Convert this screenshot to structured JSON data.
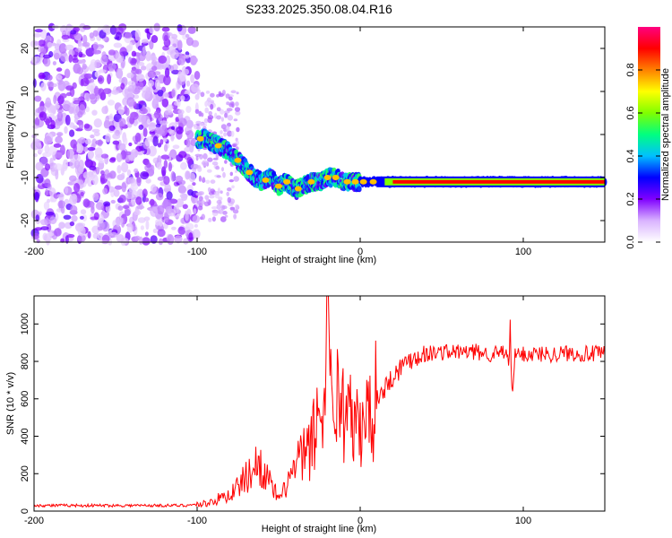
{
  "figure": {
    "title": "S233.2025.350.08.04.R16"
  },
  "chart_data": [
    {
      "type": "heatmap",
      "xlabel": "Height of straight line (km)",
      "ylabel": "Frequency (Hz)",
      "xlim": [
        -200,
        150
      ],
      "ylim": [
        -25,
        25
      ],
      "x_ticks": [
        -200,
        -100,
        0,
        100
      ],
      "y_ticks": [
        -20,
        -10,
        0,
        10,
        20
      ],
      "colorbar": {
        "label": "Normalized spectral amplitude",
        "range": [
          0,
          1
        ],
        "ticks": [
          "0.0",
          "0.2",
          "0.4",
          "0.6",
          "0.8"
        ],
        "colors": [
          "#ffffff",
          "#d9b3ff",
          "#8000ff",
          "#0000ff",
          "#00c0ff",
          "#00ff80",
          "#80ff00",
          "#ffff00",
          "#ff8000",
          "#ff0000",
          "#ff0080"
        ]
      },
      "noise_region": {
        "x": [
          -200,
          -100
        ],
        "y": [
          -25,
          25
        ],
        "level": "low (0.0-0.3)"
      },
      "signal_track": {
        "x": [
          -100,
          -95,
          -90,
          -85,
          -80,
          -75,
          -70,
          -65,
          -60,
          -55,
          -50,
          -45,
          -40,
          -35,
          -30,
          -25,
          -20,
          -15,
          -10,
          -5,
          0,
          5,
          10,
          20,
          40,
          60,
          90,
          120,
          150
        ],
        "y": [
          -1,
          -1,
          -2,
          -3,
          -4,
          -6,
          -8,
          -10,
          -11,
          -10,
          -12,
          -11,
          -13,
          -12,
          -11,
          -11,
          -10,
          -10,
          -11,
          -11,
          -11,
          -11,
          -11,
          -11,
          -11,
          -11,
          -11,
          -11,
          -11
        ]
      },
      "grid": false
    },
    {
      "type": "line",
      "xlabel": "Height of straight line (km)",
      "ylabel": "SNR (10 * v/v)",
      "xlim": [
        -200,
        150
      ],
      "ylim": [
        0,
        1150
      ],
      "x_ticks": [
        -200,
        -100,
        0,
        100
      ],
      "y_ticks": [
        0,
        200,
        400,
        600,
        800,
        1000
      ],
      "line_color": "#ff0000",
      "series": [
        {
          "x": [
            -200,
            -180,
            -160,
            -140,
            -120,
            -110,
            -100,
            -95,
            -90,
            -85,
            -80,
            -75,
            -70,
            -65,
            -62,
            -60,
            -58,
            -55,
            -52,
            -50,
            -48,
            -45,
            -40,
            -35,
            -30,
            -28,
            -25,
            -22,
            -20,
            -18,
            -15,
            -10,
            -5,
            0,
            5,
            10,
            15,
            20,
            25,
            30,
            35,
            40,
            50,
            60,
            70,
            80,
            90,
            91,
            92,
            93,
            95,
            100,
            110,
            120,
            130,
            140,
            150
          ],
          "y": [
            30,
            30,
            30,
            30,
            30,
            30,
            35,
            40,
            55,
            70,
            90,
            130,
            180,
            230,
            260,
            240,
            190,
            140,
            100,
            60,
            80,
            150,
            230,
            290,
            350,
            420,
            520,
            600,
            650,
            640,
            620,
            550,
            470,
            420,
            520,
            600,
            660,
            720,
            770,
            810,
            830,
            840,
            850,
            850,
            850,
            840,
            845,
            760,
            980,
            620,
            830,
            840,
            840,
            840,
            845,
            840,
            840
          ]
        }
      ],
      "grid": false
    }
  ]
}
